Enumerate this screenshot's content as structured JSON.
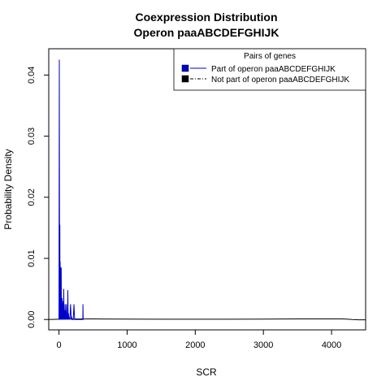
{
  "chart_data": {
    "type": "line",
    "title": "Coexpression Distribution",
    "subtitle": "Operon paaABCDEFGHIJK",
    "xlabel": "SCR",
    "ylabel": "Probability Density",
    "xlim": [
      -150,
      4500
    ],
    "ylim": [
      -0.0017,
      0.0443
    ],
    "x_ticks": [
      0,
      1000,
      2000,
      3000,
      4000
    ],
    "x_tick_labels": [
      "0",
      "1000",
      "2000",
      "3000",
      "4000"
    ],
    "y_ticks": [
      0.0,
      0.01,
      0.02,
      0.03,
      0.04
    ],
    "y_tick_labels": [
      "0.00",
      "0.01",
      "0.02",
      "0.03",
      "0.04"
    ],
    "grid": false,
    "legend": {
      "title": "Pairs of genes",
      "placement": "top-right",
      "entries": [
        {
          "label": "Part of operon paaABCDEFGHIJK",
          "color": "#0000cc",
          "line_style": "solid"
        },
        {
          "label": "Not part of operon paaABCDEFGHIJK",
          "color": "#000000",
          "line_style": "dash-dot"
        }
      ]
    },
    "series": [
      {
        "color": "#0000cc",
        "x": [
          0,
          5,
          10,
          13,
          15,
          17,
          20,
          22,
          25,
          28,
          30,
          33,
          36,
          40,
          45,
          48,
          52,
          55,
          60,
          65,
          70,
          75,
          80,
          85,
          90,
          95,
          100,
          105,
          110,
          115,
          120,
          125,
          130,
          135,
          140,
          145,
          150,
          160,
          170,
          180,
          185,
          190,
          200,
          210,
          220,
          230,
          240,
          250,
          270,
          300,
          320,
          340,
          350,
          352,
          355,
          360
        ],
        "y": [
          0.0,
          0.0425,
          0.0,
          0.0155,
          0.0,
          0.0095,
          0.0065,
          0.0085,
          0.0,
          0.0075,
          0.0,
          0.0085,
          0.001,
          0.0,
          0.0035,
          0.0,
          0.0025,
          0.0,
          0.003,
          0.0,
          0.005,
          0.0,
          0.0015,
          0.0,
          0.0025,
          0.0,
          0.0015,
          0.0,
          0.0025,
          0.0,
          0.0005,
          0.0,
          0.0048,
          0.0,
          0.001,
          0.0,
          0.0003,
          0.0,
          0.0025,
          0.0,
          0.0005,
          0.0,
          0.0,
          0.0,
          0.0025,
          0.0,
          0.0,
          0.0,
          0.0,
          0.0,
          0.0,
          0.0,
          0.0,
          0.0025,
          0.0,
          0.0
        ]
      },
      {
        "color": "#000000",
        "x": [
          -150,
          0,
          200,
          500,
          1000,
          1500,
          2000,
          2500,
          3000,
          3500,
          3800,
          4000,
          4150,
          4250,
          4300,
          4400,
          4500
        ],
        "y": [
          0.0,
          5e-05,
          8e-05,
          9e-05,
          7e-05,
          5e-05,
          4e-05,
          5e-05,
          7e-05,
          9e-05,
          0.0001,
          0.0001,
          9e-05,
          4e-05,
          0.0,
          -5e-05,
          -5e-05
        ]
      }
    ]
  }
}
